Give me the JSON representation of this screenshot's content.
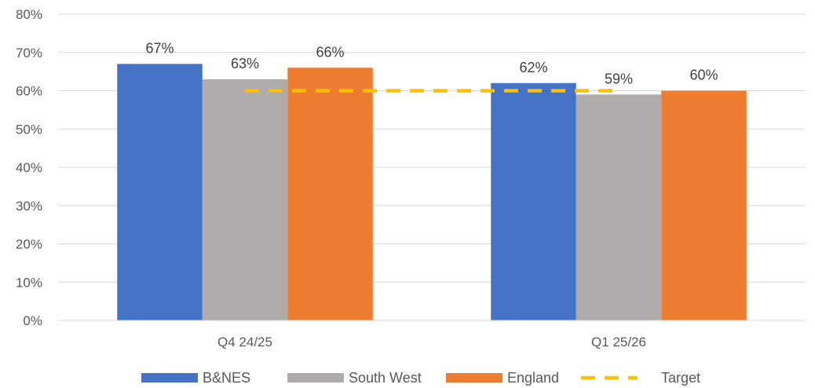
{
  "chart_data": {
    "type": "bar",
    "categories": [
      "Q4 24/25",
      "Q1 25/26"
    ],
    "series": [
      {
        "name": "B&NES",
        "values": [
          67,
          62
        ],
        "color": "#4472C4",
        "labels": [
          "67%",
          "62%"
        ]
      },
      {
        "name": "South West",
        "values": [
          63,
          59
        ],
        "color": "#AFABAB",
        "labels": [
          "63%",
          "59%"
        ]
      },
      {
        "name": "England",
        "values": [
          66,
          60
        ],
        "color": "#ED7D31",
        "labels": [
          "66%",
          "60%"
        ]
      }
    ],
    "target": {
      "name": "Target",
      "value": 60,
      "color": "#FFC000",
      "style": "dashed"
    },
    "ylim": [
      0,
      80
    ],
    "yticks": [
      {
        "value": 0,
        "label": "0%"
      },
      {
        "value": 10,
        "label": "10%"
      },
      {
        "value": 20,
        "label": "20%"
      },
      {
        "value": 30,
        "label": "30%"
      },
      {
        "value": 40,
        "label": "40%"
      },
      {
        "value": 50,
        "label": "50%"
      },
      {
        "value": 60,
        "label": "60%"
      },
      {
        "value": 70,
        "label": "70%"
      },
      {
        "value": 80,
        "label": "80%"
      }
    ],
    "grid": true,
    "gridColor": "#D9D9D9",
    "legend": "bottom",
    "title": "",
    "xlabel": "",
    "ylabel": ""
  }
}
